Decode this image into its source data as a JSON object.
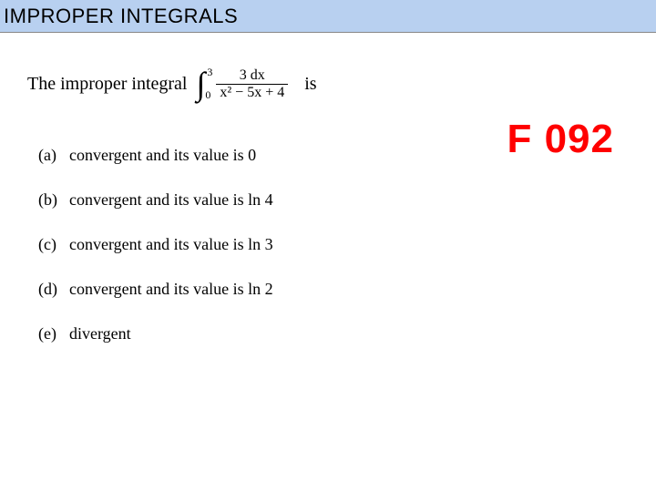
{
  "header": {
    "title": "IMPROPER INTEGRALS"
  },
  "question": {
    "lead": "The improper integral",
    "upper": "3",
    "lower": "0",
    "numerator": "3 dx",
    "denominator": "x² − 5x + 4",
    "tail": "is"
  },
  "code": "F 092",
  "options": [
    {
      "label": "(a)",
      "text": "convergent and its value is 0"
    },
    {
      "label": "(b)",
      "text": "convergent and its value is ln 4"
    },
    {
      "label": "(c)",
      "text": "convergent and its value is ln 3"
    },
    {
      "label": "(d)",
      "text": "convergent and its value is ln 2"
    },
    {
      "label": "(e)",
      "text": "divergent"
    }
  ],
  "colors": {
    "header_bg": "#b8d0f0",
    "code_color": "#ff0000",
    "text_color": "#000000",
    "background": "#ffffff"
  }
}
